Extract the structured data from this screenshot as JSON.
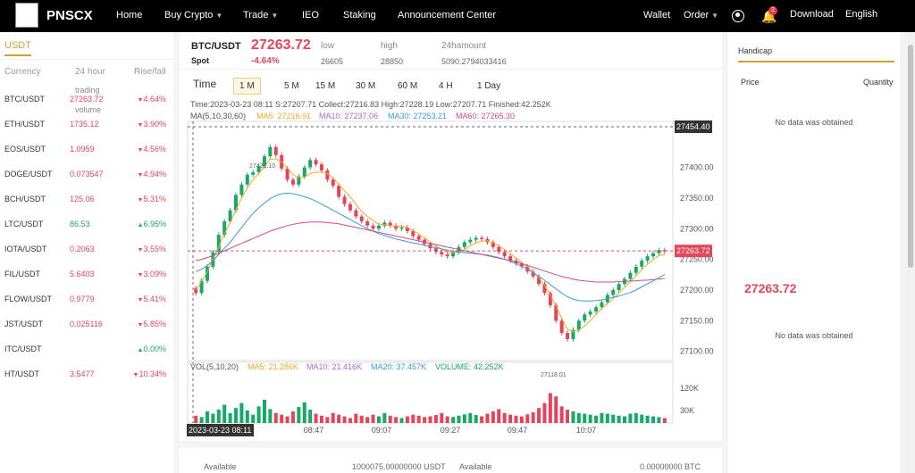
{
  "nav": {
    "logo": "PNSCX",
    "home": "Home",
    "buy_crypto": "Buy Crypto",
    "trade": "Trade",
    "ieo": "IEO",
    "staking": "Staking",
    "announcement": "Announcement Center",
    "wallet": "Wallet",
    "order": "Order",
    "notification_count": "2",
    "download": "Download",
    "language": "English"
  },
  "market": {
    "tab": "USDT",
    "col_currency": "Currency",
    "col_volume": "24 hour",
    "col_change": "Rise/fall",
    "overlay_trading": "trading",
    "overlay_volume": "volume",
    "rows": [
      {
        "symbol": "BTC/USDT",
        "price": "27263.72",
        "change": "4.64%",
        "dir": "down"
      },
      {
        "symbol": "ETH/USDT",
        "price": "1735.12",
        "change": "3.90%",
        "dir": "down"
      },
      {
        "symbol": "EOS/USDT",
        "price": "1.0959",
        "change": "4.56%",
        "dir": "down"
      },
      {
        "symbol": "DOGE/USDT",
        "price": "0.073547",
        "change": "4.94%",
        "dir": "down"
      },
      {
        "symbol": "BCH/USDT",
        "price": "125.06",
        "change": "5.31%",
        "dir": "down"
      },
      {
        "symbol": "LTC/USDT",
        "price": "86.53",
        "change": "6.95%",
        "dir": "up"
      },
      {
        "symbol": "IOTA/USDT",
        "price": "0.2063",
        "change": "3.55%",
        "dir": "down"
      },
      {
        "symbol": "FIL/USDT",
        "price": "5.6403",
        "change": "3.09%",
        "dir": "down"
      },
      {
        "symbol": "FLOW/USDT",
        "price": "0.9779",
        "change": "5.41%",
        "dir": "down"
      },
      {
        "symbol": "JST/USDT",
        "price": "0.025116",
        "change": "5.85%",
        "dir": "down"
      },
      {
        "symbol": "ITC/USDT",
        "price": "",
        "change": "0.00%",
        "dir": "up"
      },
      {
        "symbol": "HT/USDT",
        "price": "3.5477",
        "change": "10.34%",
        "dir": "down"
      }
    ]
  },
  "ticker": {
    "pair": "BTC/USDT",
    "spot": "Spot",
    "price": "27263.72",
    "change": "-4.64%",
    "low_label": "low",
    "low": "26605",
    "high_label": "high",
    "high": "28850",
    "amount_label": "24hamount",
    "amount": "5090.2794033416"
  },
  "timeframes": {
    "time_label": "Time",
    "items": [
      "1 M",
      "5 M",
      "15 M",
      "30 M",
      "60 M",
      "4 H",
      "1 Day"
    ],
    "active": "1 M"
  },
  "chart_info": {
    "line1": "Time:2023-03-23 08:11   S:27207.71    Collect:27216.83    High:27228.19    Low:27207.71   Finished:42.252K",
    "ma_label": "MA(5,10,30,60)",
    "ma5": "MA5: 27216.91",
    "ma10": "MA10: 27237.06",
    "ma30": "MA30: 27253.21",
    "ma60": "MA60: 27265.30",
    "vol_label": "VOL(5,10,20)",
    "vma5": "MA5: 21.286K",
    "vma10": "MA10: 21.416K",
    "vma20": "MA20: 37.457K",
    "volume": "VOLUME: 42.252K",
    "crosshair_price": "27454.40",
    "current_price": "27263.72",
    "max_label": "27433.10",
    "min_label": "27118.01",
    "crosshair_time": "2023-03-23 08:11"
  },
  "chart_data": {
    "type": "candlestick",
    "y_axis_ticks": [
      "27400.00",
      "27350.00",
      "27300.00",
      "27250.00",
      "27200.00",
      "27150.00",
      "27100.00"
    ],
    "y_range": [
      27085,
      27475
    ],
    "volume_ticks": [
      "120K",
      "30K"
    ],
    "volume_range": [
      0,
      150
    ],
    "x_axis_ticks": [
      "08:47",
      "09:07",
      "09:27",
      "09:47",
      "10:07"
    ],
    "closes": [
      27195,
      27215,
      27238,
      27262,
      27290,
      27312,
      27330,
      27355,
      27372,
      27388,
      27392,
      27402,
      27418,
      27433,
      27420,
      27398,
      27380,
      27372,
      27385,
      27400,
      27412,
      27405,
      27395,
      27380,
      27370,
      27352,
      27340,
      27330,
      27320,
      27312,
      27305,
      27300,
      27305,
      27310,
      27305,
      27300,
      27302,
      27296,
      27288,
      27282,
      27275,
      27268,
      27262,
      27258,
      27255,
      27262,
      27270,
      27278,
      27282,
      27285,
      27283,
      27278,
      27270,
      27262,
      27255,
      27248,
      27243,
      27238,
      27230,
      27222,
      27210,
      27195,
      27175,
      27150,
      27130,
      27120,
      27135,
      27150,
      27160,
      27165,
      27172,
      27180,
      27192,
      27200,
      27210,
      27218,
      27228,
      27238,
      27248,
      27255,
      27260,
      27265,
      27263
    ],
    "ma5": [
      27200,
      27214,
      27230,
      27250,
      27270,
      27292,
      27310,
      27330,
      27350,
      27366,
      27380,
      27390,
      27402,
      27413,
      27414,
      27409,
      27399,
      27388,
      27383,
      27384,
      27390,
      27392,
      27392,
      27390,
      27383,
      27372,
      27362,
      27352,
      27340,
      27328,
      27320,
      27313,
      27308,
      27306,
      27305,
      27304,
      27304,
      27302,
      27297,
      27291,
      27285,
      27278,
      27272,
      27266,
      27262,
      27261,
      27262,
      27266,
      27272,
      27277,
      27280,
      27280,
      27277,
      27272,
      27266,
      27259,
      27252,
      27245,
      27238,
      27230,
      27220,
      27207,
      27192,
      27174,
      27154,
      27136,
      27132,
      27135,
      27141,
      27150,
      27160,
      27170,
      27178,
      27186,
      27195,
      27204,
      27214,
      27223,
      27233,
      27242,
      27250,
      27256,
      27258
    ],
    "ma30": [
      27230,
      27234,
      27240,
      27248,
      27258,
      27268,
      27278,
      27290,
      27302,
      27314,
      27325,
      27334,
      27342,
      27349,
      27354,
      27357,
      27358,
      27357,
      27355,
      27352,
      27349,
      27345,
      27340,
      27335,
      27330,
      27325,
      27320,
      27315,
      27310,
      27305,
      27300,
      27296,
      27292,
      27289,
      27286,
      27283,
      27281,
      27279,
      27277,
      27275,
      27273,
      27271,
      27269,
      27267,
      27265,
      27263,
      27262,
      27261,
      27260,
      27259,
      27258,
      27257,
      27255,
      27253,
      27250,
      27247,
      27243,
      27239,
      27234,
      27228,
      27222,
      27216,
      27209,
      27202,
      27195,
      27189,
      27185,
      27183,
      27182,
      27182,
      27183,
      27184,
      27186,
      27188,
      27190,
      27193,
      27196,
      27200,
      27205,
      27210,
      27215,
      27220,
      27225
    ],
    "ma60": [
      27248,
      27250,
      27253,
      27256,
      27260,
      27264,
      27268,
      27272,
      27276,
      27280,
      27284,
      27288,
      27292,
      27296,
      27299,
      27302,
      27305,
      27307,
      27309,
      27310,
      27311,
      27311,
      27311,
      27310,
      27309,
      27308,
      27306,
      27304,
      27302,
      27300,
      27298,
      27296,
      27294,
      27292,
      27290,
      27288,
      27286,
      27284,
      27282,
      27280,
      27278,
      27276,
      27274,
      27272,
      27270,
      27268,
      27266,
      27264,
      27262,
      27260,
      27258,
      27256,
      27254,
      27252,
      27250,
      27248,
      27246,
      27243,
      27240,
      27237,
      27234,
      27231,
      27228,
      27225,
      27222,
      27220,
      27218,
      27216,
      27215,
      27214,
      27213,
      27213,
      27213,
      27213,
      27214,
      27214,
      27215,
      27215,
      27216,
      27216,
      27217,
      27218,
      27219
    ],
    "volumes": [
      22,
      18,
      35,
      28,
      40,
      55,
      30,
      45,
      60,
      38,
      25,
      50,
      70,
      42,
      30,
      25,
      20,
      35,
      48,
      62,
      40,
      28,
      22,
      18,
      30,
      25,
      20,
      15,
      28,
      22,
      18,
      25,
      20,
      30,
      22,
      18,
      15,
      20,
      25,
      22,
      18,
      20,
      24,
      30,
      20,
      18,
      22,
      26,
      30,
      24,
      20,
      28,
      35,
      42,
      30,
      25,
      22,
      20,
      26,
      32,
      45,
      60,
      90,
      80,
      50,
      40,
      35,
      30,
      28,
      25,
      22,
      30,
      28,
      25,
      22,
      20,
      28,
      30,
      25,
      22,
      20,
      18,
      15
    ]
  },
  "colors": {
    "up": "#17a967",
    "down": "#e5455a",
    "ma5": "#f5a623",
    "ma10": "#b067d6",
    "ma30": "#3a9bdc",
    "ma60": "#d44a8a"
  },
  "bottom": {
    "available_left": "Available",
    "available_left_value": "1000075.00000000 USDT",
    "available_right": "Available",
    "available_right_value": "0.00000000 BTC"
  },
  "handicap": {
    "title": "Handicap",
    "price_col": "Price",
    "qty_col": "Quantity",
    "no_data_top": "No data was obtained",
    "no_data_bottom": "No data was obtained",
    "current_price": "27263.72"
  }
}
